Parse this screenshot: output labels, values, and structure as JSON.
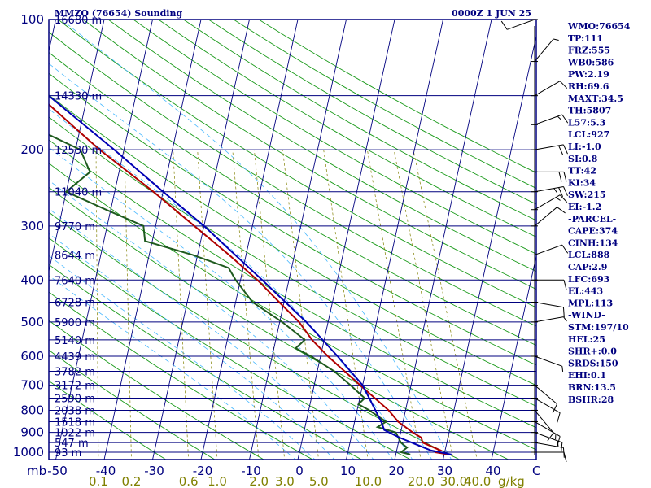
{
  "header": {
    "title": "MMZO (76654) Sounding",
    "valid_time": "0000Z  1 JUN 25"
  },
  "colors": {
    "navy": "#00007f",
    "temperature": "#b00000",
    "dewpoint": "#1e5a1e",
    "parcel": "#0000b4",
    "dry_adiabat": "#1a9a1a",
    "moist_adiabat": "#48b8ff",
    "mixing_ratio": "#808000"
  },
  "indices": [
    "WMO:76654",
    "TP:111",
    "FRZ:555",
    "WB0:586",
    "PW:2.19",
    "RH:69.6",
    "MAXT:34.5",
    "TH:5807",
    "L57:5.3",
    "LCL:927",
    "LI:-1.0",
    "SI:0.8",
    "TT:42",
    "KI:34",
    "SW:215",
    "EI:-1.2",
    "-PARCEL-",
    "CAPE:374",
    "CINH:134",
    "LCL:888",
    "CAP:2.9",
    "LFC:693",
    "EL:443",
    "MPL:113",
    "-WIND-",
    "STM:197/10",
    "HEL:25",
    "SHR+:0.0",
    "SRDS:150",
    "EHI:0.1",
    "BRN:13.5",
    "BSHR:28"
  ],
  "chart_data": {
    "type": "skew-t log-p",
    "xlabel": "C",
    "ylabel": "mb",
    "x_ticks": [
      -50,
      -40,
      -30,
      -20,
      -10,
      0,
      10,
      20,
      30,
      40
    ],
    "xlim_at_1000mb": [
      -50,
      50
    ],
    "y_ticks": [
      100,
      200,
      300,
      400,
      500,
      600,
      700,
      800,
      900,
      1000
    ],
    "ylim": [
      100,
      1050
    ],
    "mixing_ratio_label": "g/kg",
    "mixing_ratio_ticks": [
      {
        "label": "0.1",
        "value": 0.1
      },
      {
        "label": "0.2",
        "value": 0.2
      },
      {
        "label": "0.6",
        "value": 0.6
      },
      {
        "label": "1.0",
        "value": 1.0
      },
      {
        "label": "2.0",
        "value": 2.0
      },
      {
        "label": "3.0",
        "value": 3.0
      },
      {
        "label": "5.0",
        "value": 5.0
      },
      {
        "label": "10.0",
        "value": 10.0
      },
      {
        "label": "20.0",
        "value": 20.0
      },
      {
        "label": "30.0",
        "value": 30.0
      },
      {
        "label": "40.0",
        "value": 40.0
      }
    ],
    "heights": [
      {
        "p": 100,
        "label": "16680 m"
      },
      {
        "p": 150,
        "label": "14330 m"
      },
      {
        "p": 200,
        "label": "12530 m"
      },
      {
        "p": 250,
        "label": "11040 m"
      },
      {
        "p": 300,
        "label": "9770 m"
      },
      {
        "p": 350,
        "label": "8644 m"
      },
      {
        "p": 400,
        "label": "7640 m"
      },
      {
        "p": 450,
        "label": "6728 m"
      },
      {
        "p": 500,
        "label": "5900 m"
      },
      {
        "p": 550,
        "label": "5140 m"
      },
      {
        "p": 600,
        "label": "4439 m"
      },
      {
        "p": 650,
        "label": "3782 m"
      },
      {
        "p": 700,
        "label": "3172 m"
      },
      {
        "p": 750,
        "label": "2590 m"
      },
      {
        "p": 800,
        "label": "2038 m"
      },
      {
        "p": 850,
        "label": "1518 m"
      },
      {
        "p": 900,
        "label": "1022 m"
      },
      {
        "p": 950,
        "label": "547 m"
      },
      {
        "p": 1000,
        "label": "93 m"
      }
    ],
    "series": [
      {
        "name": "temperature",
        "color": "#b00000",
        "points": [
          {
            "p": 1012,
            "t": 31.0
          },
          {
            "p": 1000,
            "t": 28.0
          },
          {
            "p": 990,
            "t": 29.0
          },
          {
            "p": 950,
            "t": 25.0
          },
          {
            "p": 925,
            "t": 24.5
          },
          {
            "p": 900,
            "t": 22.5
          },
          {
            "p": 850,
            "t": 19.0
          },
          {
            "p": 800,
            "t": 16.5
          },
          {
            "p": 700,
            "t": 9.5
          },
          {
            "p": 600,
            "t": 1.5
          },
          {
            "p": 550,
            "t": -2.5
          },
          {
            "p": 500,
            "t": -6.0
          },
          {
            "p": 450,
            "t": -11.0
          },
          {
            "p": 400,
            "t": -16.5
          },
          {
            "p": 350,
            "t": -23.5
          },
          {
            "p": 300,
            "t": -32.0
          },
          {
            "p": 250,
            "t": -42.0
          },
          {
            "p": 200,
            "t": -55.0
          },
          {
            "p": 175,
            "t": -62.0
          },
          {
            "p": 150,
            "t": -70.0
          },
          {
            "p": 125,
            "t": -78.0
          },
          {
            "p": 110,
            "t": -84.0
          },
          {
            "p": 100,
            "t": -79.0
          },
          {
            "p": 95,
            "t": -74.0
          }
        ]
      },
      {
        "name": "dewpoint",
        "color": "#1e5a1e",
        "points": [
          {
            "p": 1012,
            "t": 23.0
          },
          {
            "p": 1000,
            "t": 21.0
          },
          {
            "p": 975,
            "t": 22.0
          },
          {
            "p": 950,
            "t": 20.5
          },
          {
            "p": 900,
            "t": 19.0
          },
          {
            "p": 875,
            "t": 15.0
          },
          {
            "p": 850,
            "t": 16.5
          },
          {
            "p": 800,
            "t": 12.5
          },
          {
            "p": 775,
            "t": 10.0
          },
          {
            "p": 750,
            "t": 11.0
          },
          {
            "p": 700,
            "t": 7.5
          },
          {
            "p": 650,
            "t": 3.5
          },
          {
            "p": 600,
            "t": -2.0
          },
          {
            "p": 575,
            "t": -5.5
          },
          {
            "p": 550,
            "t": -4.0
          },
          {
            "p": 500,
            "t": -9.5
          },
          {
            "p": 450,
            "t": -16.5
          },
          {
            "p": 400,
            "t": -21.0
          },
          {
            "p": 375,
            "t": -23.0
          },
          {
            "p": 350,
            "t": -31.0
          },
          {
            "p": 325,
            "t": -41.5
          },
          {
            "p": 300,
            "t": -42.5
          },
          {
            "p": 275,
            "t": -51.0
          },
          {
            "p": 250,
            "t": -60.0
          },
          {
            "p": 225,
            "t": -56.0
          },
          {
            "p": 200,
            "t": -59.0
          },
          {
            "p": 175,
            "t": -71.0
          },
          {
            "p": 150,
            "t": -82.0
          },
          {
            "p": 125,
            "t": -93.0
          },
          {
            "p": 110,
            "t": -97.0
          },
          {
            "p": 100,
            "t": -93.0
          },
          {
            "p": 95,
            "t": -90.0
          }
        ]
      },
      {
        "name": "parcel",
        "color": "#0000b4",
        "points": [
          {
            "p": 1012,
            "t": 31.5
          },
          {
            "p": 990,
            "t": 27.0
          },
          {
            "p": 925,
            "t": 20.0
          },
          {
            "p": 888,
            "t": 16.5
          },
          {
            "p": 850,
            "t": 15.5
          },
          {
            "p": 700,
            "t": 10.0
          },
          {
            "p": 600,
            "t": 3.5
          },
          {
            "p": 500,
            "t": -4.5
          },
          {
            "p": 443,
            "t": -10.5
          },
          {
            "p": 400,
            "t": -15.5
          },
          {
            "p": 300,
            "t": -30.0
          },
          {
            "p": 250,
            "t": -40.0
          },
          {
            "p": 200,
            "t": -52.0
          },
          {
            "p": 150,
            "t": -68.0
          },
          {
            "p": 113,
            "t": -84.0
          },
          {
            "p": 100,
            "t": -91.0
          }
        ]
      }
    ],
    "wind_barbs": [
      {
        "p": 100,
        "dir": 250,
        "spd": 10
      },
      {
        "p": 125,
        "dir": 40,
        "spd": 5
      },
      {
        "p": 150,
        "dir": 60,
        "spd": 10
      },
      {
        "p": 175,
        "dir": 70,
        "spd": 15
      },
      {
        "p": 200,
        "dir": 80,
        "spd": 20
      },
      {
        "p": 225,
        "dir": 90,
        "spd": 20
      },
      {
        "p": 250,
        "dir": 80,
        "spd": 25
      },
      {
        "p": 275,
        "dir": 60,
        "spd": 15
      },
      {
        "p": 300,
        "dir": 50,
        "spd": 10
      },
      {
        "p": 350,
        "dir": 70,
        "spd": 10
      },
      {
        "p": 400,
        "dir": 90,
        "spd": 10
      },
      {
        "p": 450,
        "dir": 100,
        "spd": 10
      },
      {
        "p": 500,
        "dir": 80,
        "spd": 5
      },
      {
        "p": 600,
        "dir": 110,
        "spd": 5
      },
      {
        "p": 700,
        "dir": 130,
        "spd": 10
      },
      {
        "p": 750,
        "dir": 120,
        "spd": 10
      },
      {
        "p": 800,
        "dir": 140,
        "spd": 10
      },
      {
        "p": 850,
        "dir": 120,
        "spd": 15
      },
      {
        "p": 900,
        "dir": 110,
        "spd": 15
      },
      {
        "p": 950,
        "dir": 100,
        "spd": 10
      },
      {
        "p": 1000,
        "dir": 90,
        "spd": 10
      }
    ]
  }
}
